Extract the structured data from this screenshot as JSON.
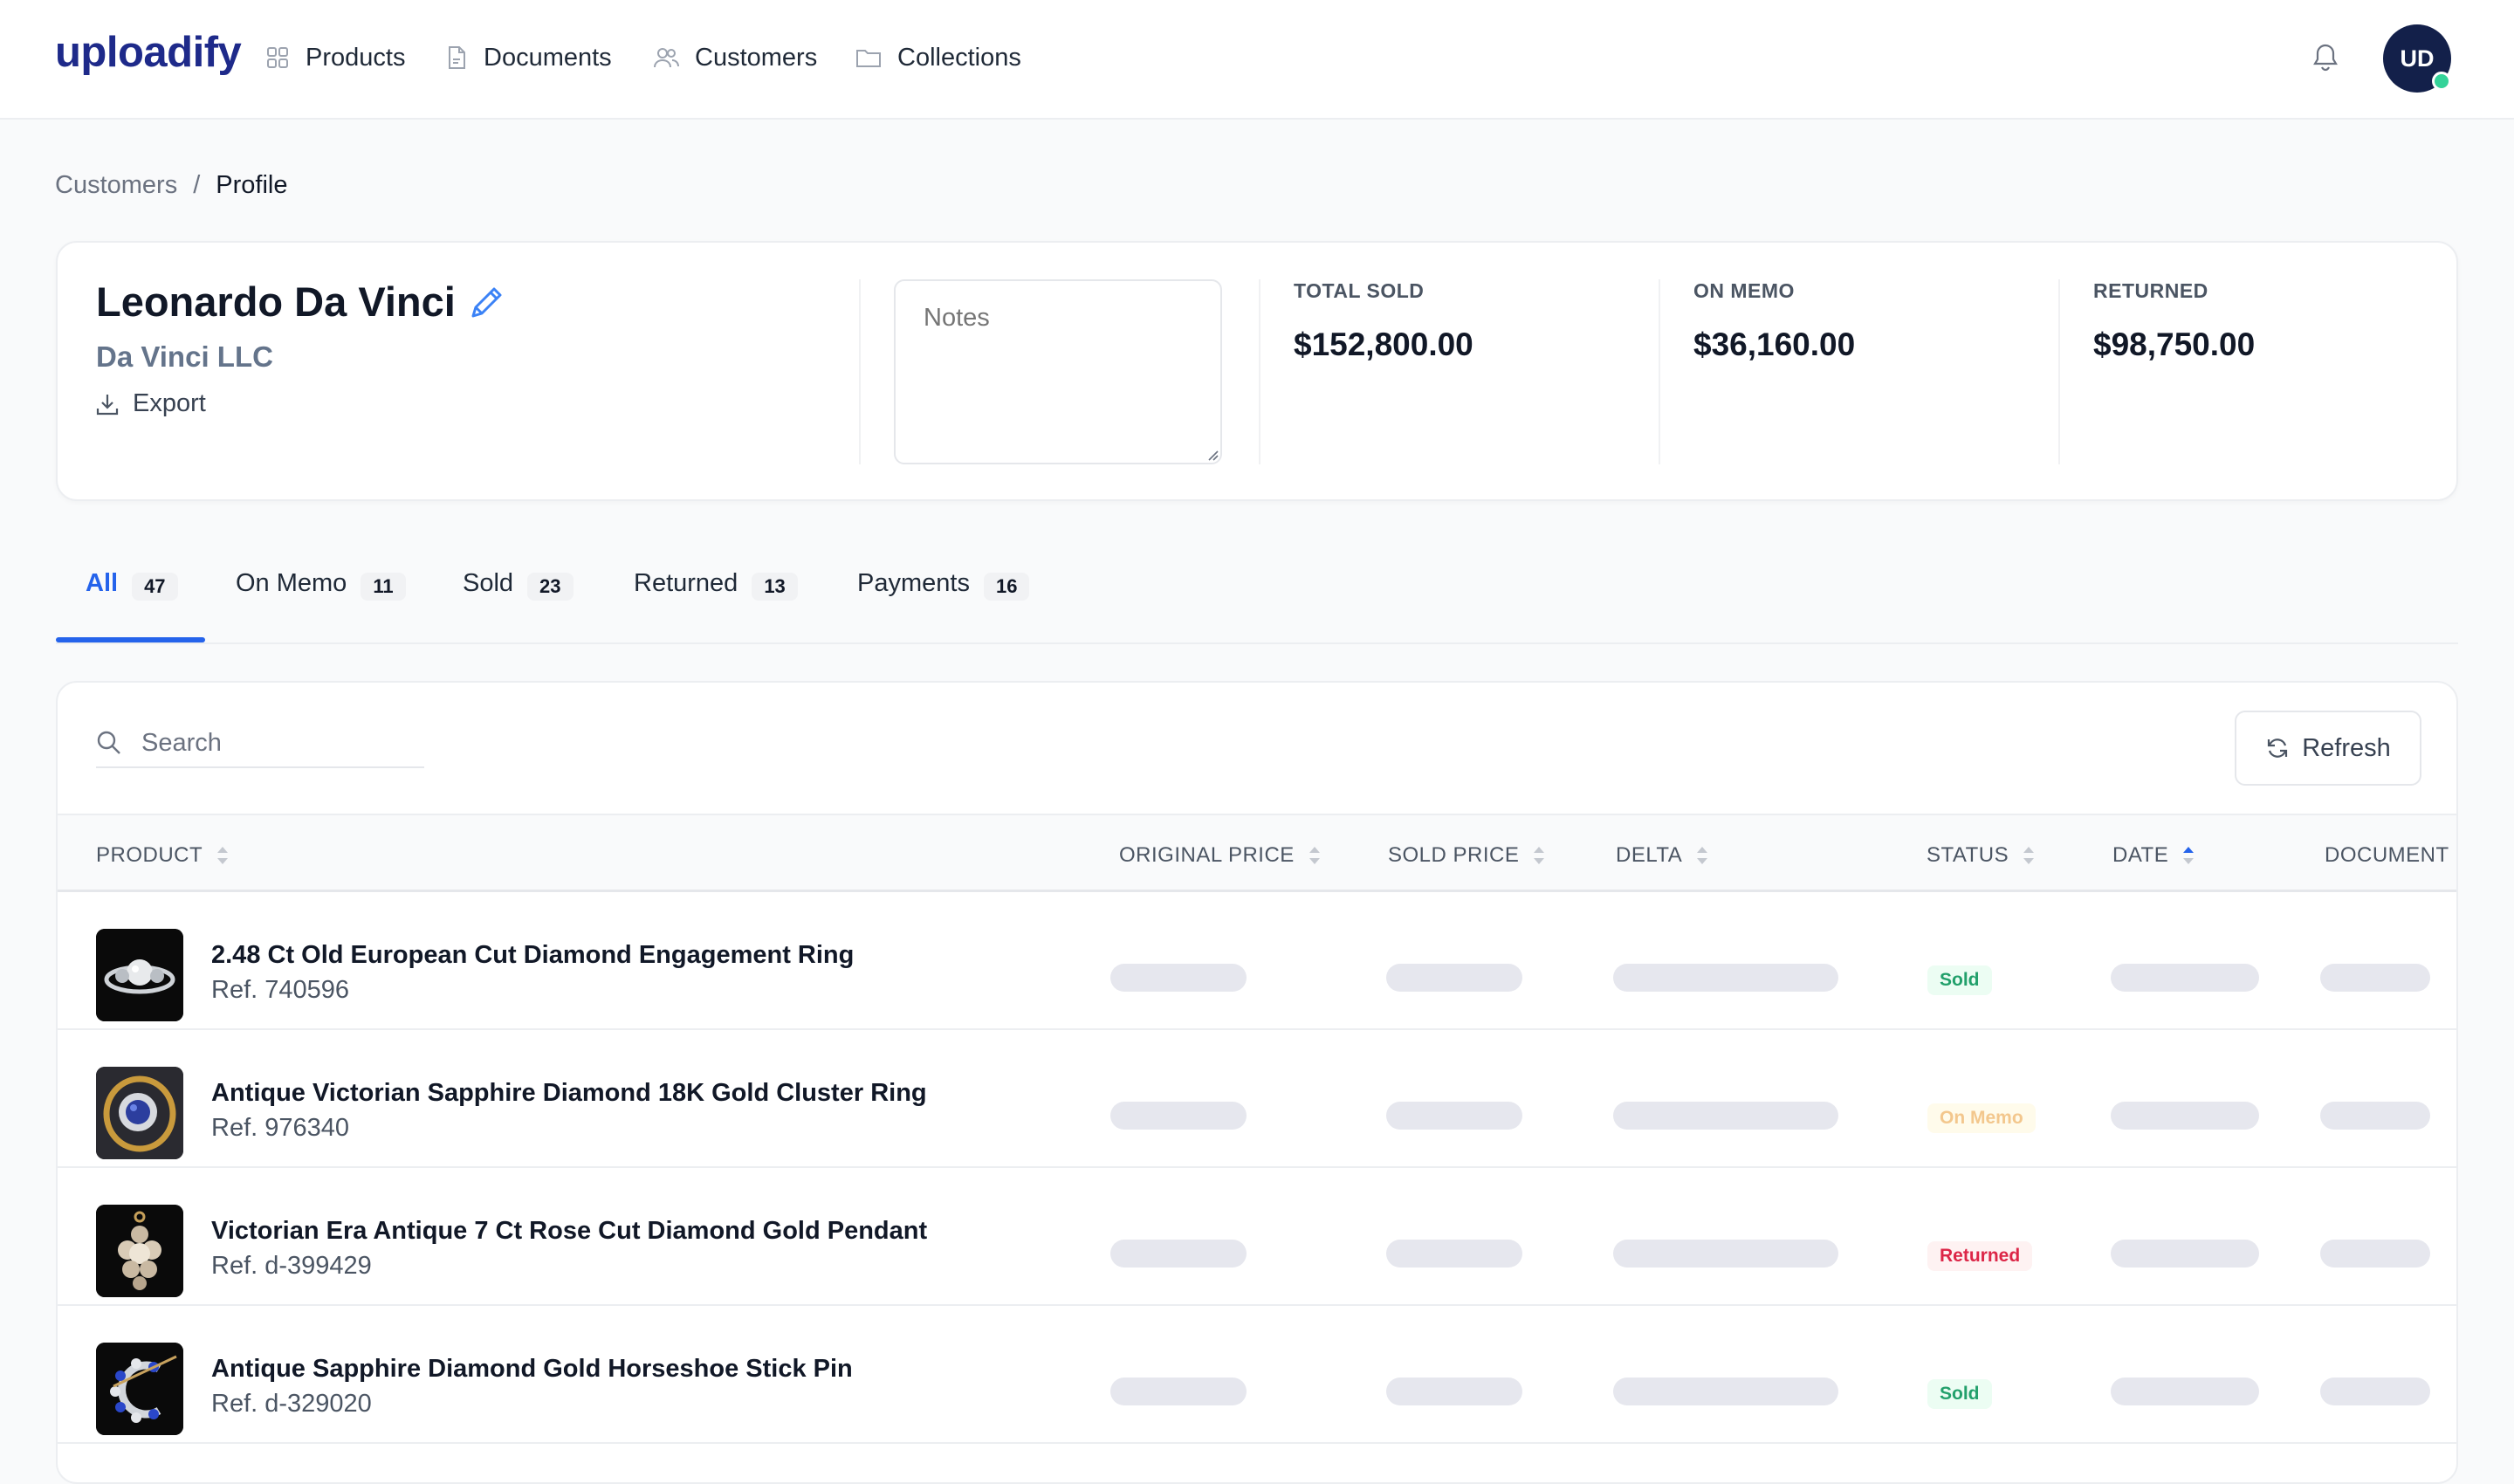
{
  "app": {
    "brand": "uploadify",
    "nav": [
      {
        "label": "Products",
        "icon": "grid-icon"
      },
      {
        "label": "Documents",
        "icon": "document-icon"
      },
      {
        "label": "Customers",
        "icon": "users-icon"
      },
      {
        "label": "Collections",
        "icon": "folder-icon"
      }
    ],
    "avatar_initials": "UD",
    "accent": "#2563eb"
  },
  "breadcrumb": {
    "parent": "Customers",
    "separator": "/",
    "current": "Profile"
  },
  "profile": {
    "name": "Leonardo Da Vinci",
    "company": "Da Vinci LLC",
    "export_label": "Export",
    "notes_placeholder": "Notes"
  },
  "stats": [
    {
      "label": "TOTAL SOLD",
      "value": "$152,800.00"
    },
    {
      "label": "ON MEMO",
      "value": "$36,160.00"
    },
    {
      "label": "RETURNED",
      "value": "$98,750.00"
    }
  ],
  "tabs": [
    {
      "label": "All",
      "count": "47",
      "active": true
    },
    {
      "label": "On Memo",
      "count": "11"
    },
    {
      "label": "Sold",
      "count": "23"
    },
    {
      "label": "Returned",
      "count": "13"
    },
    {
      "label": "Payments",
      "count": "16"
    }
  ],
  "table": {
    "search_placeholder": "Search",
    "refresh_label": "Refresh",
    "columns": [
      "PRODUCT",
      "ORIGINAL PRICE",
      "SOLD PRICE",
      "DELTA",
      "STATUS",
      "DATE",
      "DOCUMENT"
    ],
    "sorted_column": "DATE",
    "rows": [
      {
        "name": "2.48 Ct Old European Cut Diamond Engagement Ring",
        "ref": "Ref. 740596",
        "status": "Sold"
      },
      {
        "name": "Antique Victorian Sapphire Diamond 18K Gold Cluster Ring",
        "ref": "Ref. 976340",
        "status": "On Memo"
      },
      {
        "name": "Victorian Era Antique 7 Ct Rose Cut Diamond Gold Pendant",
        "ref": "Ref. d-399429",
        "status": "Returned"
      },
      {
        "name": "Antique Sapphire Diamond Gold Horseshoe Stick Pin",
        "ref": "Ref. d-329020",
        "status": "Sold"
      }
    ]
  }
}
